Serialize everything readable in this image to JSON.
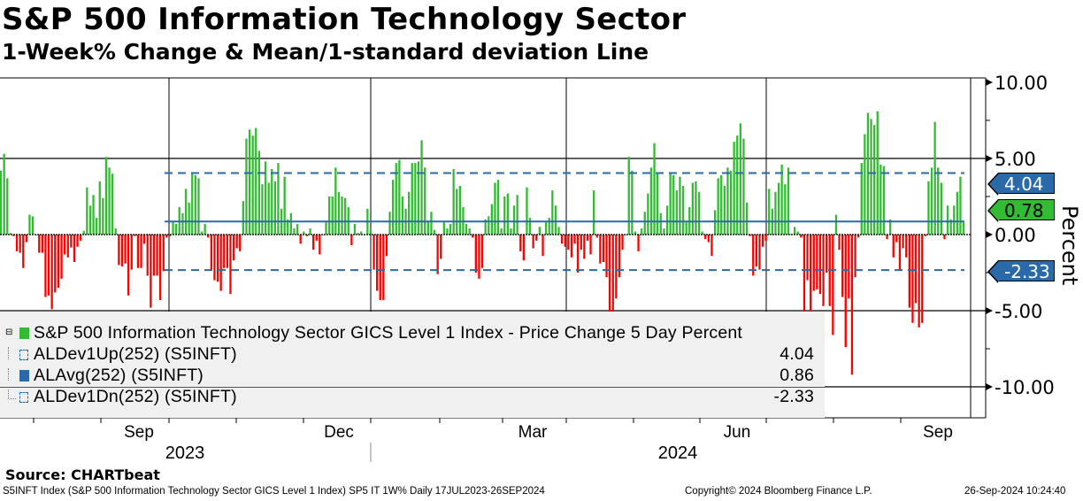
{
  "header": {
    "title": "S&P 500 Information Technology Sector",
    "subtitle": "1-Week% Change & Mean/1-standard deviation Line"
  },
  "legend": [
    {
      "label": "S&P 500 Information Technology Sector GICS Level 1 Index - Price Change 5 Day Percent",
      "value": "",
      "color": "#33bb33"
    },
    {
      "label": "ALDev1Up(252) (S5INFT)",
      "value": "4.04",
      "color": "#2a6aa8"
    },
    {
      "label": "ALAvg(252) (S5INFT)",
      "value": "0.86",
      "color": "#2a6aa8"
    },
    {
      "label": "ALDev1Dn(252) (S5INFT)",
      "value": "-2.33",
      "color": "#2a6aa8"
    }
  ],
  "tags": {
    "upper": "4.04",
    "last": "0.78",
    "lower": "-2.33"
  },
  "footer": {
    "source": "Source: CHARTbeat",
    "info": "S5INFT Index (S&P 500 Information Technology Sector GICS Level 1 Index) SP5 IT 1W%  Daily 17JUL2023-26SEP2024",
    "copyright": "Copyright© 2024 Bloomberg Finance L.P.",
    "timestamp": "26-Sep-2024 10:24:40"
  },
  "chart_data": {
    "type": "bar",
    "title": "S&P 500 Information Technology Sector",
    "subtitle": "1-Week% Change & Mean/1-standard deviation Line",
    "ylabel": "Percent",
    "ylim": [
      -12,
      10.5
    ],
    "yticks": [
      "10.00",
      "5.00",
      "0.00",
      "-5.00",
      "-10.00"
    ],
    "ytick_values": [
      10,
      5,
      0,
      -5,
      -10
    ],
    "x_month_labels": [
      "Sep",
      "Dec",
      "Mar",
      "Jun",
      "Sep"
    ],
    "x_year_labels": [
      "2023",
      "2024"
    ],
    "date_range": "17JUL2023-26SEP2024",
    "positive_color": "#33bb33",
    "negative_color": "#ff0000",
    "reference_lines": {
      "mean": 0.86,
      "upper_1sd": 4.04,
      "lower_1sd": -2.33,
      "color": "#2a6aa8"
    },
    "last_value": 0.78,
    "values": [
      4.2,
      5.3,
      3.7,
      0.1,
      -0.1,
      -1.1,
      -1.2,
      -2.2,
      -0.5,
      1.3,
      1.2,
      0,
      -1.2,
      -1.2,
      -4.1,
      -4.0,
      -4.9,
      -3.8,
      -3.5,
      -2.9,
      -1.3,
      -1.5,
      -0.85,
      -1.8,
      -0.8,
      -0.4,
      0.25,
      3.1,
      1.9,
      2.6,
      1.1,
      3.5,
      2.4,
      5.1,
      4.4,
      4.0,
      0.4,
      -2.0,
      -2.1,
      -1.9,
      -4.0,
      -2.3,
      -0.1,
      -2.2,
      -2.2,
      -0.6,
      -2.7,
      -4.8,
      -2.7,
      -2.7,
      -4.3,
      -2.4,
      -0.2,
      -0.1,
      0.8,
      0.7,
      1.8,
      1.4,
      3.0,
      2.1,
      4.1,
      3.9,
      3.7,
      0.2,
      0.7,
      -0.2,
      -2.3,
      -3.0,
      -3.1,
      -3.7,
      -2.2,
      -2.2,
      -3.9,
      -1.7,
      -0.9,
      -1.1,
      2.2,
      6.3,
      6.9,
      6.5,
      7.0,
      5.5,
      3.3,
      4.8,
      3.4,
      4.3,
      3.5,
      4.7,
      1.7,
      3.8,
      1.0,
      1.4,
      0.4,
      0.7,
      -0.6,
      0.2,
      -0.1,
      0.4,
      -1.0,
      -0.4,
      -1.3,
      0,
      0.8,
      2.5,
      2.5,
      4.4,
      2.8,
      2.5,
      2.4,
      1.8,
      -0.7,
      0.7,
      0.1,
      0.2,
      0,
      1.7,
      0.3,
      -2.3,
      -3.7,
      -4.3,
      -4.3,
      -1.4,
      1.5,
      3.6,
      4.7,
      4.9,
      2.5,
      1.7,
      2.8,
      4.7,
      4.7,
      4.8,
      6.2,
      4.4,
      0.9,
      1.5,
      0.3,
      -2.6,
      -1.6,
      0.8,
      0.4,
      0.7,
      4.3,
      3.0,
      3.2,
      1.8,
      0.7,
      0.4,
      -0.2,
      -2.5,
      -2.9,
      -2.2,
      1.0,
      1.2,
      2.0,
      3.4,
      3.6,
      0.4,
      2.5,
      2.7,
      0.4,
      1.9,
      2.6,
      -1.1,
      -1.7,
      3.1,
      1.1,
      -0.9,
      -0.4,
      0.5,
      -1.4,
      0.8,
      1.1,
      2.9,
      1.9,
      0.5,
      -0.6,
      -0.8,
      -1.0,
      -1.5,
      -0.6,
      -2.5,
      -1.0,
      -1.6,
      -0.4,
      -1.3,
      2.9,
      -0.2,
      -1.9,
      -1.8,
      -2.8,
      -5.9,
      -7.2,
      -4.2,
      -2.8,
      -1.0,
      0,
      5.1,
      4.2,
      0.2,
      -1.1,
      0.4,
      1.5,
      2.7,
      4.4,
      6.0,
      4.0,
      1.4,
      0.4,
      1.9,
      4.0,
      3.9,
      2.9,
      3.8,
      3.2,
      0.8,
      1.8,
      3.4,
      3.5,
      2.8,
      0.2,
      -0.3,
      -0.5,
      -1.4,
      1.6,
      3.7,
      3.9,
      3.2,
      4.4,
      4.2,
      6.1,
      6.5,
      7.3,
      6.3,
      2.1,
      -0.1,
      -2.7,
      -2.1,
      -2.3,
      -0.8,
      -0.4,
      3.0,
      1.7,
      2.8,
      3.4,
      4.6,
      3.3,
      4.4,
      0.05,
      0.5,
      0.2,
      -0.2,
      -5.5,
      -3.0,
      -5.1,
      -3.7,
      -3.6,
      -3.9,
      -4.7,
      -2.5,
      -4.7,
      -6.6,
      1.3,
      -1.0,
      -4.1,
      -7.4,
      -4.2,
      -9.2,
      -2.8,
      -0.2,
      4.7,
      6.6,
      8.0,
      7.6,
      7.2,
      8.1,
      4.6,
      4.5,
      -0.3,
      1.0,
      -1.5,
      -0.5,
      -2.3,
      -0.9,
      -1.5,
      -4.8,
      -5.8,
      -4.5,
      -6.1,
      -5.8,
      -0.1,
      3.5,
      4.4,
      7.4,
      4.4,
      3.4,
      -0.3,
      1.9,
      1.0,
      1.9,
      2.8,
      3.8,
      0.8
    ]
  }
}
